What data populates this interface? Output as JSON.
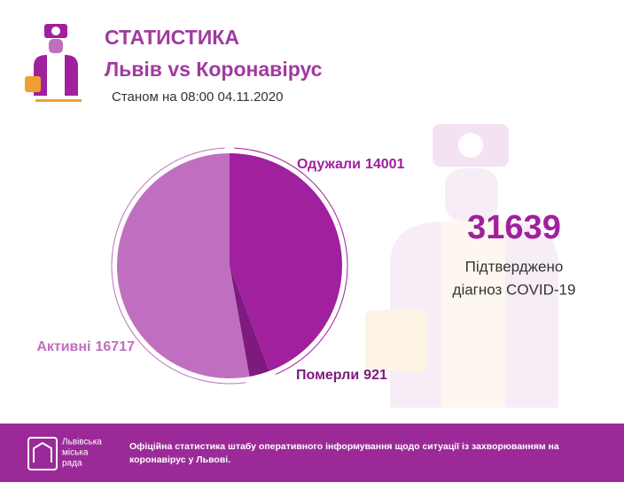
{
  "chart_data": {
    "type": "pie",
    "title": "СТАТИСТИКА",
    "subtitle": "Львів vs Коронавірус",
    "date_note": "Станом на 08:00 04.11.2020",
    "categories": [
      "Одужали",
      "Померли",
      "Активні"
    ],
    "values": [
      14001,
      921,
      16717
    ],
    "colors": [
      "#a0209e",
      "#7e1a7e",
      "#c06fc0"
    ]
  },
  "summary": {
    "value": 31639,
    "caption": [
      "Підтверджено",
      "діагноз COVID-19"
    ]
  },
  "footer": {
    "logo": [
      "Львівська",
      "міська",
      "рада"
    ],
    "text": [
      "Офіційна статистика штабу оперативного інформування щодо ситуації із захворюванням на",
      "коронавірус у Львові."
    ]
  }
}
